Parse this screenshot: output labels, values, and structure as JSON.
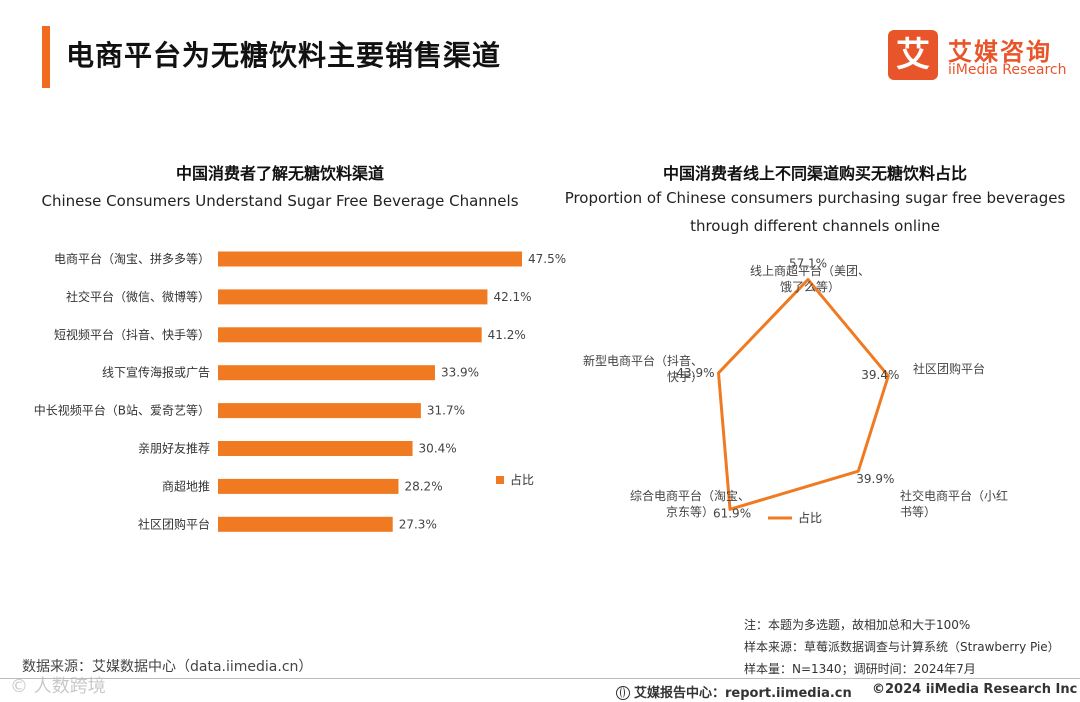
{
  "page": {
    "title": "电商平台为无糖饮料主要销售渠道"
  },
  "logo": {
    "mark": "艾",
    "name_cn": "艾媒咨询",
    "name_en": "iiMedia Research"
  },
  "left_chart": {
    "title_cn": "中国消费者了解无糖饮料渠道",
    "title_en": "Chinese Consumers Understand Sugar Free Beverage Channels"
  },
  "right_chart": {
    "title_cn": "中国消费者线上不同渠道购买无糖饮料占比",
    "title_en_line1": "Proportion of Chinese consumers purchasing sugar free beverages",
    "title_en_line2": "through different channels online"
  },
  "chart_data": [
    {
      "type": "bar",
      "orientation": "horizontal",
      "title": "中国消费者了解无糖饮料渠道",
      "subtitle": "Chinese Consumers Understand Sugar Free Beverage Channels",
      "categories": [
        "电商平台（淘宝、拼多多等）",
        "社交平台（微信、微博等）",
        "短视频平台（抖音、快手等）",
        "线下宣传海报或广告",
        "中长视频平台（B站、爱奇艺等）",
        "亲朋好友推荐",
        "商超地推",
        "社区团购平台"
      ],
      "values": [
        47.5,
        42.1,
        41.2,
        33.9,
        31.7,
        30.4,
        28.2,
        27.3
      ],
      "value_labels": [
        "47.5%",
        "42.1%",
        "41.2%",
        "33.9%",
        "31.7%",
        "30.4%",
        "28.2%",
        "27.3%"
      ],
      "series_name": "占比",
      "unit": "%",
      "xlim": [
        0,
        50
      ],
      "legend": "right",
      "color": "#f07a22"
    },
    {
      "type": "radar",
      "title": "中国消费者线上不同渠道购买无糖饮料占比",
      "subtitle": "Proportion of Chinese consumers purchasing sugar free beverages through different channels online",
      "categories": [
        "线上商超平台（美团、饿了么等）",
        "社区团购平台",
        "社交电商平台（小红书等）",
        "综合电商平台（淘宝、京东等）",
        "新型电商平台（抖音、快手）"
      ],
      "category_lines": [
        [
          "线上商超平台（美团、",
          "饿了么等）"
        ],
        [
          "社区团购平台"
        ],
        [
          "社交电商平台（小红",
          "书等）"
        ],
        [
          "综合电商平台（淘宝、",
          "京东等）"
        ],
        [
          "新型电商平台（抖音、",
          "快手）"
        ]
      ],
      "values": [
        57.1,
        39.4,
        39.9,
        61.9,
        43.9
      ],
      "value_labels": [
        "57.1%",
        "39.4%",
        "39.9%",
        "61.9%",
        "43.9%"
      ],
      "series_name": "占比",
      "unit": "%",
      "rlim": [
        0,
        70
      ],
      "legend": "bottom",
      "color": "#f07a22"
    }
  ],
  "notes": {
    "line1": "注：本题为多选题，故相加总和大于100%",
    "line2": "样本来源：草莓派数据调查与计算系统（Strawberry Pie）",
    "line3": "样本量：N=1340；调研时间：2024年7月"
  },
  "source": "数据来源：艾媒数据中心（data.iimedia.cn）",
  "footer": {
    "report": "艾媒报告中心：report.iimedia.cn",
    "copyright": "©2024  iiMedia Research  Inc"
  },
  "watermark": "© 人数跨境"
}
